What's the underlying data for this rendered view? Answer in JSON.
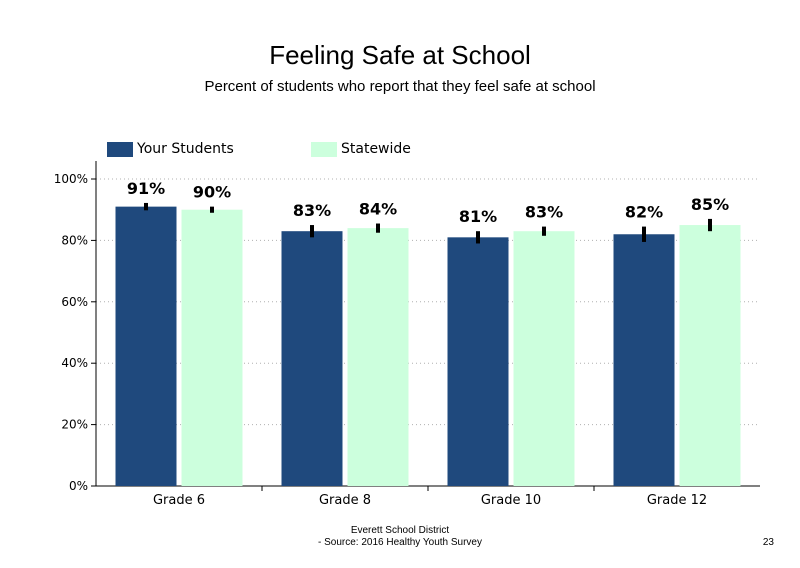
{
  "chart_data": {
    "type": "bar",
    "title": "Feeling Safe at School",
    "subtitle": "Percent of students  who report that they feel safe at school",
    "categories": [
      "Grade 6",
      "Grade 8",
      "Grade 10",
      "Grade 12"
    ],
    "series": [
      {
        "name": "Your Students",
        "color": "#1f497d",
        "values": [
          91,
          83,
          81,
          82
        ],
        "labels": [
          "91%",
          "83%",
          "81%",
          "82%"
        ],
        "error": [
          1.2,
          2.0,
          2.0,
          2.5
        ]
      },
      {
        "name": "Statewide",
        "color": "#ccffdd",
        "values": [
          90,
          84,
          83,
          85
        ],
        "labels": [
          "90%",
          "84%",
          "83%",
          "85%"
        ],
        "error": [
          1.0,
          1.5,
          1.5,
          2.0
        ]
      }
    ],
    "ylim": [
      0,
      100
    ],
    "yticks": [
      0,
      20,
      40,
      60,
      80,
      100
    ],
    "ytick_labels": [
      "0%",
      "20%",
      "40%",
      "60%",
      "80%",
      "100%"
    ],
    "xlabel": "",
    "ylabel": "",
    "grid": true,
    "legend_position": "top"
  },
  "footer": {
    "line1": "Everett School District",
    "line2": "- Source: 2016 Healthy  Youth Survey"
  },
  "page_number": "23"
}
